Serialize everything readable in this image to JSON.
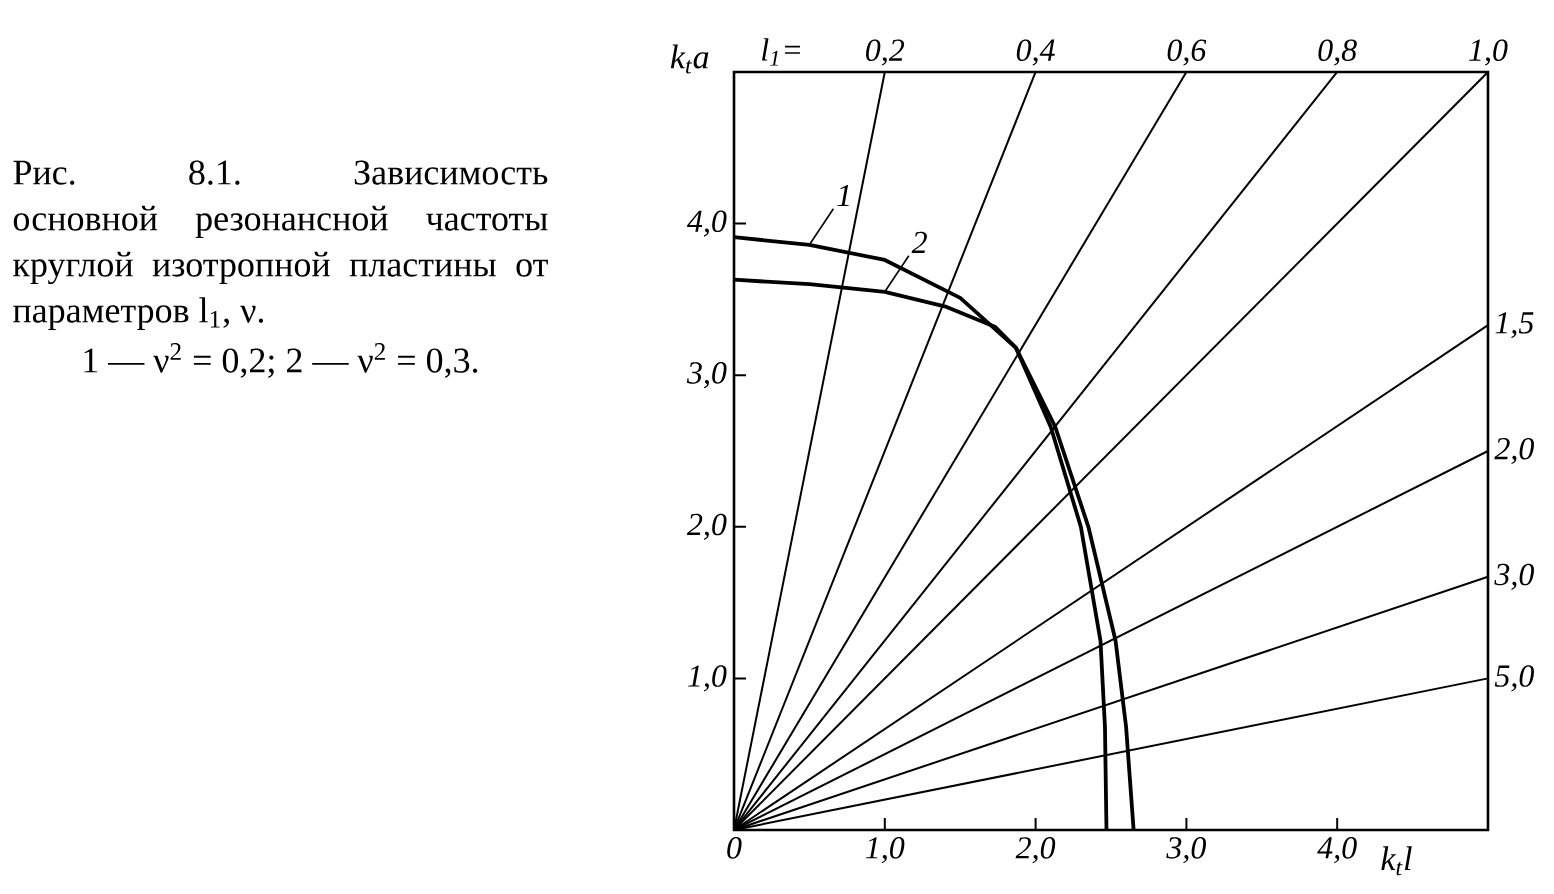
{
  "chart_data": {
    "type": "line",
    "title": "Рис. 8.1. Зависимость основной резонансной частоты круглой изотропной пластины от параметров l$_{1}$, ν.",
    "annotations": [
      "l$_{1}$=",
      "1 — ν$^{2}$ = 0,2;   2 — ν$^{2}$ = 0,3."
    ],
    "xlabel": "k$_{t}$l",
    "ylabel": "k$_{t}$a",
    "xlim": [
      0,
      5.0
    ],
    "ylim": [
      0,
      5.0
    ],
    "xticks": [
      {
        "value": 0,
        "label": "0"
      },
      {
        "value": 1,
        "label": "1,0"
      },
      {
        "value": 2,
        "label": "2,0"
      },
      {
        "value": 3,
        "label": "3,0"
      },
      {
        "value": 4,
        "label": "4,0"
      }
    ],
    "yticks": [
      {
        "value": 1,
        "label": "1,0"
      },
      {
        "value": 2,
        "label": "2,0"
      },
      {
        "value": 3,
        "label": "3,0"
      },
      {
        "value": 4,
        "label": "4,0"
      }
    ],
    "grid": false,
    "marker": "none",
    "line_style": "solid",
    "series": [
      {
        "name": "1",
        "color": "#000000",
        "x": [
          0,
          0.5,
          1.0,
          1.5,
          1.87,
          2.13,
          2.35,
          2.53,
          2.6,
          2.65
        ],
        "values": [
          3.91,
          3.86,
          3.76,
          3.51,
          3.18,
          2.66,
          2.0,
          1.25,
          0.68,
          0
        ]
      },
      {
        "name": "2",
        "color": "#000000",
        "x": [
          0,
          0.5,
          1.0,
          1.41,
          1.73,
          1.87,
          2.1,
          2.3,
          2.43,
          2.46,
          2.47
        ],
        "values": [
          3.63,
          3.6,
          3.55,
          3.45,
          3.32,
          3.18,
          2.66,
          2.0,
          1.25,
          0.68,
          0
        ]
      },
      {
        "name": "0,2",
        "color": "#000000",
        "x": [
          0,
          1.0
        ],
        "values": [
          0,
          5.0
        ]
      },
      {
        "name": "0,4",
        "color": "#000000",
        "x": [
          0,
          2.0
        ],
        "values": [
          0,
          5.0
        ]
      },
      {
        "name": "0,6",
        "color": "#000000",
        "x": [
          0,
          3.0
        ],
        "values": [
          0,
          5.0
        ]
      },
      {
        "name": "0,8",
        "color": "#000000",
        "x": [
          0,
          4.0
        ],
        "values": [
          0,
          5.0
        ]
      },
      {
        "name": "1,0",
        "color": "#000000",
        "x": [
          0,
          5.0
        ],
        "values": [
          0,
          5.0
        ]
      },
      {
        "name": "1,5",
        "color": "#000000",
        "x": [
          0,
          5.0
        ],
        "values": [
          0,
          3.33
        ]
      },
      {
        "name": "2,0",
        "color": "#000000",
        "x": [
          0,
          5.0
        ],
        "values": [
          0,
          2.5
        ]
      },
      {
        "name": "3,0",
        "color": "#000000",
        "x": [
          0,
          5.0
        ],
        "values": [
          0,
          1.67
        ]
      },
      {
        "name": "5,0",
        "color": "#000000",
        "x": [
          0,
          5.0
        ],
        "values": [
          0,
          1.0
        ]
      }
    ]
  }
}
